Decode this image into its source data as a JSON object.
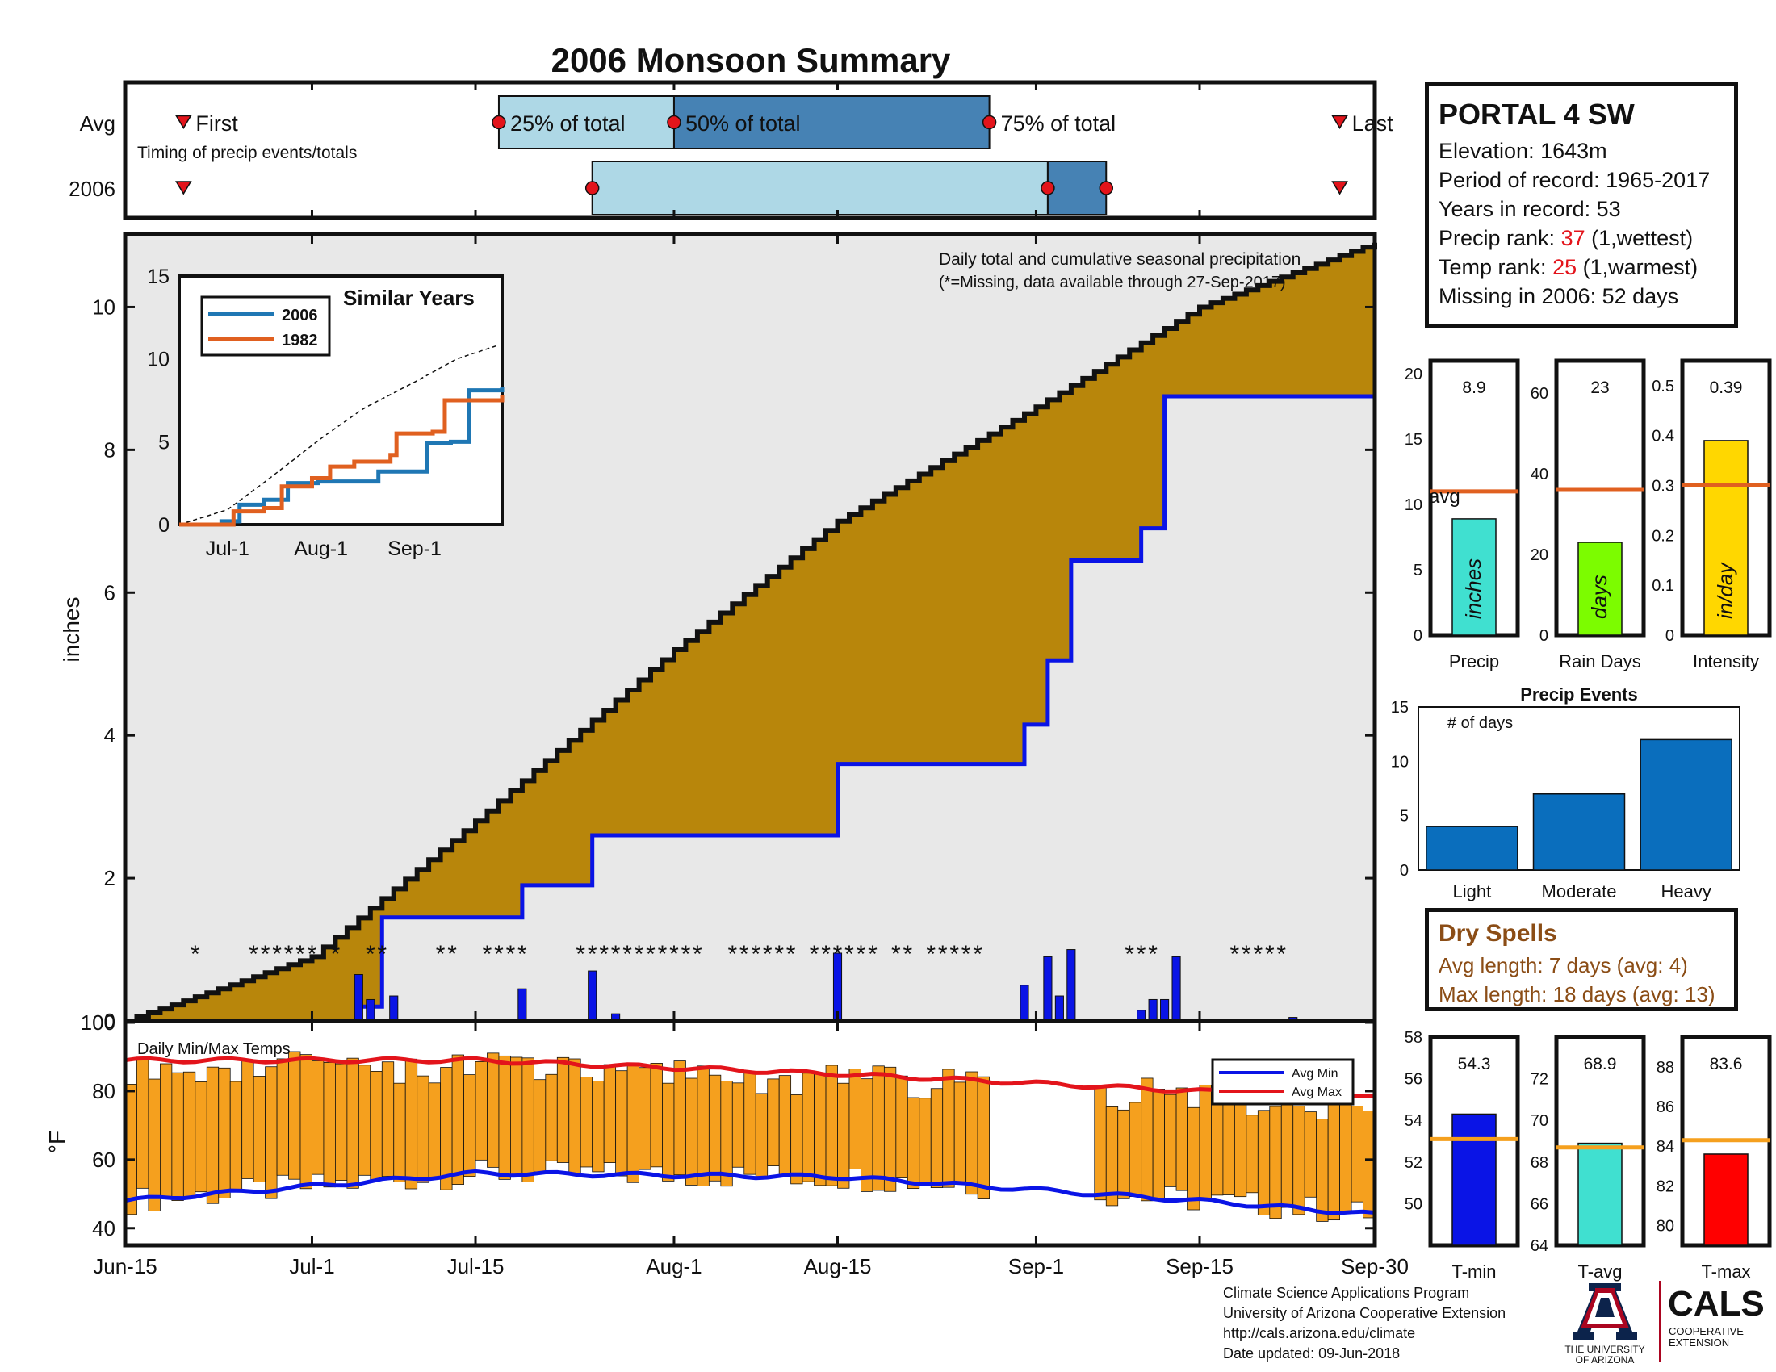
{
  "title": "2006 Monsoon Summary",
  "colors": {
    "title": "#e3141b",
    "cum_avg_fill": "#b8860b",
    "cum_year_line": "#0a14e6",
    "bars_daily": "#0a14e6",
    "missing": "#e3141b",
    "temp_bar": "#f5a01e",
    "avg_min": "#0a14e6",
    "avg_max": "#e3141b",
    "light_blue": "#aed8e6",
    "steel_blue": "#4682b4",
    "avg_line": "#e06020"
  },
  "station": {
    "name": "PORTAL 4 SW",
    "elevation": "Elevation: 1643m",
    "period": "Period of record: 1965-2017",
    "years": "Years in record: 53",
    "precip_rank_label": "Precip rank: ",
    "precip_rank_value": "37",
    "precip_rank_note": " (1,wettest)",
    "temp_rank_label": "Temp rank: ",
    "temp_rank_value": "25",
    "temp_rank_note": " (1,warmest)",
    "missing": "Missing in 2006: 52 days"
  },
  "timing_panel": {
    "row_labels": [
      "Avg",
      "2006"
    ],
    "subtitle": "Timing of precip events/totals",
    "first_label": "First",
    "last_label": "Last",
    "p25_label": "25% of total",
    "p50_label": "50% of total",
    "p75_label": "75% of total",
    "avg": {
      "first": "2006-06-20",
      "p25": "2006-07-17",
      "p50": "2006-08-01",
      "p75": "2006-08-28",
      "last": "2006-09-27"
    },
    "year": {
      "first": "2006-06-20",
      "p25": "2006-07-25",
      "p50": "2006-09-02",
      "p75": "2006-09-07",
      "last": "2006-09-27"
    }
  },
  "main_panel": {
    "ylabel": "inches",
    "annotation_title": "Daily total and cumulative seasonal precipitation",
    "annotation_missing": "(*=Missing, data available through 27-Sep-2017)",
    "yticks": [
      "0",
      "2",
      "4",
      "6",
      "8",
      "10"
    ],
    "xticks": [
      "Jun-15",
      "Jul-1",
      "Jul-15",
      "Aug-1",
      "Aug-15",
      "Sep-1",
      "Sep-15",
      "Sep-30"
    ],
    "inset": {
      "title": "Similar Years",
      "legend": [
        "2006",
        "1982"
      ],
      "yticks": [
        "0",
        "5",
        "10",
        "15"
      ],
      "xticks": [
        "Jul-1",
        "Aug-1",
        "Sep-1"
      ]
    },
    "temp": {
      "ylabel": "°F",
      "label": "Daily Min/Max Temps",
      "legend_min": "Avg Min",
      "legend_max": "Avg Max",
      "yticks": [
        "40",
        "60",
        "80",
        "100"
      ]
    }
  },
  "side_bars": {
    "precip": {
      "label": "Precip",
      "value": "8.9",
      "unit": "inches",
      "avg_text": "avg",
      "yticks": [
        "0",
        "5",
        "10",
        "15",
        "20"
      ],
      "ymax": 21,
      "val": 8.9,
      "avg": 11
    },
    "rain_days": {
      "label": "Rain Days",
      "value": "23",
      "unit": "days",
      "yticks": [
        "0",
        "20",
        "40",
        "60"
      ],
      "ymax": 68,
      "val": 23,
      "avg": 36
    },
    "intensity": {
      "label": "Intensity",
      "value": "0.39",
      "unit": "in/day",
      "yticks": [
        "0",
        "0.1",
        "0.2",
        "0.3",
        "0.4",
        "0.5"
      ],
      "ymax": 0.55,
      "val": 0.39,
      "avg": 0.3
    }
  },
  "precip_events": {
    "title": "Precip Events",
    "ylabel": "# of days",
    "yticks": [
      "0",
      "5",
      "10",
      "15"
    ],
    "categories": [
      "Light",
      "Moderate",
      "Heavy"
    ],
    "values": [
      4,
      7,
      12
    ]
  },
  "dry_spells": {
    "title": "Dry Spells",
    "avg_length": "Avg length: 7 days (avg: 4)",
    "max_length": "Max length: 18 days (avg: 13)"
  },
  "temp_bars": {
    "tmin": {
      "label": "T-min",
      "value": "54.3",
      "yticks": [
        "50",
        "52",
        "54",
        "56",
        "58"
      ],
      "ymin": 48,
      "ymax": 58,
      "val": 54.3,
      "avg": 53.1
    },
    "tavg": {
      "label": "T-avg",
      "value": "68.9",
      "yticks": [
        "64",
        "66",
        "68",
        "70",
        "72"
      ],
      "ymin": 64,
      "ymax": 74,
      "val": 68.9,
      "avg": 68.7
    },
    "tmax": {
      "label": "T-max",
      "value": "83.6",
      "yticks": [
        "80",
        "82",
        "84",
        "86",
        "88"
      ],
      "ymin": 79,
      "ymax": 89.5,
      "val": 83.6,
      "avg": 84.3
    }
  },
  "footer": {
    "line1": "Climate Science Applications Program",
    "line2": "University of Arizona Cooperative Extension",
    "line3": "http://cals.arizona.edu/climate",
    "line4": " Date updated: 09-Jun-2018"
  },
  "logo": {
    "ua_line1": "THE UNIVERSITY",
    "ua_line2": "OF ARIZONA",
    "cals": "CALS",
    "coop1": "COOPERATIVE",
    "coop2": "EXTENSION"
  },
  "chart_data": [
    {
      "type": "line",
      "title": "2006 Monsoon Summary",
      "ylabel": "inches",
      "x_range": [
        "2006-06-15",
        "2006-09-30"
      ],
      "ylim": [
        0,
        11
      ],
      "series": [
        {
          "name": "average cumulative",
          "x": [
            "2006-06-15",
            "2006-07-01",
            "2006-07-15",
            "2006-08-01",
            "2006-08-15",
            "2006-09-01",
            "2006-09-15",
            "2006-09-30"
          ],
          "values": [
            0,
            0.9,
            2.8,
            5.2,
            7.0,
            8.6,
            10.0,
            10.9
          ]
        },
        {
          "name": "2006 cumulative",
          "x": [
            "2006-06-15",
            "2006-07-05",
            "2006-07-07",
            "2006-07-19",
            "2006-07-25",
            "2006-08-15",
            "2006-08-31",
            "2006-09-02",
            "2006-09-04",
            "2006-09-10",
            "2006-09-12",
            "2006-09-30"
          ],
          "values": [
            0,
            0.2,
            1.45,
            1.9,
            2.6,
            3.6,
            4.15,
            5.05,
            6.45,
            6.9,
            8.75,
            8.9
          ]
        }
      ],
      "daily_bars": {
        "x": [
          "2006-07-05",
          "2006-07-06",
          "2006-07-08",
          "2006-07-19",
          "2006-07-25",
          "2006-07-27",
          "2006-08-15",
          "2006-08-31",
          "2006-09-02",
          "2006-09-03",
          "2006-09-04",
          "2006-09-10",
          "2006-09-11",
          "2006-09-12",
          "2006-09-13",
          "2006-09-23"
        ],
        "values": [
          0.65,
          0.3,
          0.35,
          0.45,
          0.7,
          0.1,
          0.95,
          0.5,
          0.9,
          0.35,
          1.0,
          0.15,
          0.3,
          0.3,
          0.9,
          0.05
        ]
      }
    },
    {
      "type": "line",
      "title": "Similar Years",
      "ylim": [
        0,
        15
      ],
      "series": [
        {
          "name": "2006",
          "x": [
            "Jun-15",
            "Jul-1",
            "Aug-1",
            "Sep-1",
            "Sep-30"
          ],
          "values": [
            0,
            1.5,
            2.6,
            4.9,
            9.0
          ]
        },
        {
          "name": "1982",
          "x": [
            "Jun-15",
            "Jul-1",
            "Aug-1",
            "Sep-1",
            "Sep-30"
          ],
          "values": [
            0,
            0.8,
            3.0,
            5.5,
            8.3
          ]
        }
      ]
    },
    {
      "type": "bar",
      "title": "Daily Min/Max Temps",
      "ylim": [
        35,
        100
      ],
      "series": [
        {
          "name": "Avg Min",
          "x": [
            "Jun-15",
            "Jul-15",
            "Aug-15",
            "Sep-15",
            "Sep-30"
          ],
          "values": [
            48,
            56,
            55,
            48,
            44
          ]
        },
        {
          "name": "Avg Max",
          "x": [
            "Jun-15",
            "Jul-15",
            "Aug-15",
            "Sep-15",
            "Sep-30"
          ],
          "values": [
            89,
            89,
            85,
            80,
            78
          ]
        }
      ]
    },
    {
      "type": "bar",
      "title": "Precip Events",
      "categories": [
        "Light",
        "Moderate",
        "Heavy"
      ],
      "values": [
        4,
        7,
        12
      ],
      "ylim": [
        0,
        15
      ]
    }
  ]
}
